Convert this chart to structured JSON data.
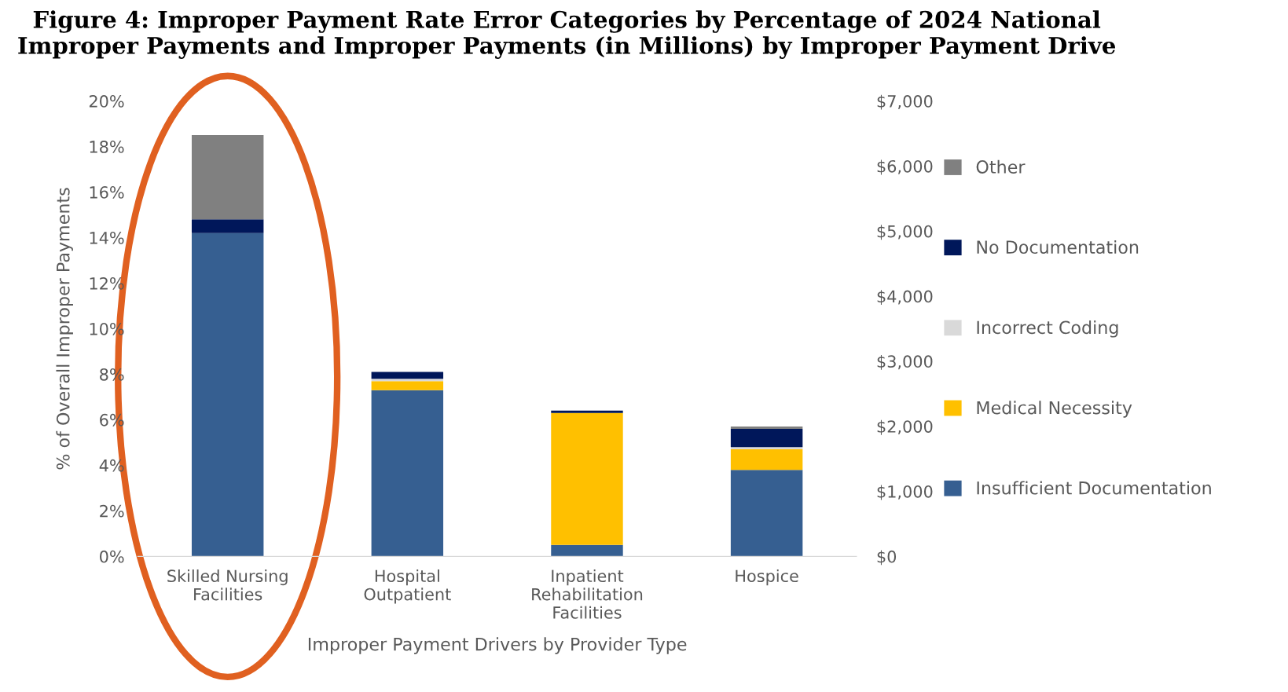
{
  "chart_data": {
    "type": "bar",
    "stacked": true,
    "title": "Figure 4: Improper Payment Rate Error Categories by Percentage of 2024 National\nImproper Payments and Improper Payments (in Millions) by Improper Payment Drive",
    "xlabel": "Improper Payment Drivers by Provider Type",
    "ylabel": "% of Overall Improper Payments",
    "categories": [
      "Skilled Nursing\nFacilities",
      "Hospital\nOutpatient",
      "Inpatient\nRehabilitation\nFacilities",
      "Hospice"
    ],
    "series": [
      {
        "name": "Insufficient Documentation",
        "color": "#365f91",
        "values": [
          14.2,
          7.3,
          0.5,
          3.8
        ]
      },
      {
        "name": "Medical Necessity",
        "color": "#ffc000",
        "values": [
          0,
          0.4,
          5.8,
          0.9
        ]
      },
      {
        "name": "Incorrect Coding",
        "color": "#d9d9d9",
        "values": [
          0,
          0.1,
          0,
          0.1
        ]
      },
      {
        "name": "No Documentation",
        "color": "#00175a",
        "values": [
          0.6,
          0.3,
          0.1,
          0.8
        ]
      },
      {
        "name": "Other",
        "color": "#808080",
        "values": [
          3.7,
          0,
          0,
          0.1
        ]
      }
    ],
    "ylim": [
      0,
      20
    ],
    "yticks": [
      {
        "value": 0,
        "label": "0%"
      },
      {
        "value": 2,
        "label": "2%"
      },
      {
        "value": 4,
        "label": "4%"
      },
      {
        "value": 6,
        "label": "6%"
      },
      {
        "value": 8,
        "label": "8%"
      },
      {
        "value": 10,
        "label": "10%"
      },
      {
        "value": 12,
        "label": "12%"
      },
      {
        "value": 14,
        "label": "14%"
      },
      {
        "value": 16,
        "label": "16%"
      },
      {
        "value": 18,
        "label": "18%"
      },
      {
        "value": 20,
        "label": "20%"
      }
    ],
    "y2lim": [
      0,
      7000
    ],
    "y2ticks": [
      {
        "value": 0,
        "label": "$0"
      },
      {
        "value": 1000,
        "label": "$1,000"
      },
      {
        "value": 2000,
        "label": "$2,000"
      },
      {
        "value": 3000,
        "label": "$3,000"
      },
      {
        "value": 4000,
        "label": "$4,000"
      },
      {
        "value": 5000,
        "label": "$5,000"
      },
      {
        "value": 6000,
        "label": "$6,000"
      },
      {
        "value": 7000,
        "label": "$7,000"
      }
    ],
    "legend": "right",
    "grid": false
  }
}
